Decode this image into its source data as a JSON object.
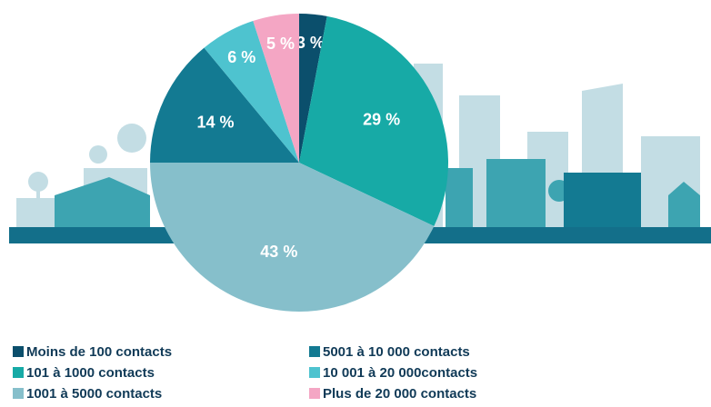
{
  "chart_data": {
    "type": "pie",
    "categories": [
      "Moins de 100 contacts",
      "101 à 1000 contacts",
      "1001 à 5000 contacts",
      "5001 à 10 000 contacts",
      "10 001 à 20 000contacts",
      "Plus de 20 000 contacts"
    ],
    "values": [
      3,
      29,
      43,
      14,
      6,
      5
    ],
    "value_labels": [
      "3 %",
      "29 %",
      "43 %",
      "14 %",
      "6 %",
      "5 %"
    ],
    "colors": [
      "#0b4f6c",
      "#17aaa6",
      "#86bfcb",
      "#137a92",
      "#4ec3cf",
      "#f4a6c4"
    ]
  }
}
